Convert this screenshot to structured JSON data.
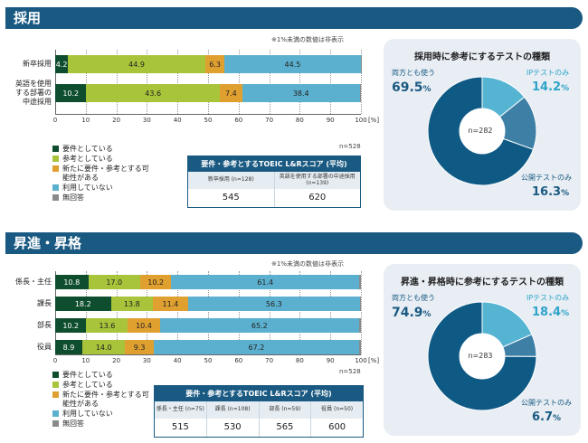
{
  "colors": {
    "required": "#0e4e2e",
    "reference": "#a8c43a",
    "considering": "#e0a030",
    "notused": "#5cb0cf",
    "noanswer": "#8a8a8a",
    "header": "#1a5a82",
    "donut_both": "#0e5a85",
    "donut_ip": "#56b4d3",
    "donut_public": "#3e7fa6"
  },
  "hiring": {
    "section_title": "採用",
    "note": "※1%未満の数値は非表示",
    "n_label": "n=528",
    "axis_unit": "[%]",
    "legend": [
      "要件としている",
      "参考としている",
      "新たに要件・参考とする可能性がある",
      "利用していない",
      "無回答"
    ],
    "score_table": {
      "title": "要件・参考とするTOEIC L&Rスコア (平均)",
      "headers": [
        "新卒採用 (n=128)",
        "英語を使用する部署の中途採用 (n=139)"
      ],
      "values": [
        "545",
        "620"
      ]
    },
    "donut": {
      "title": "採用時に参考にするテストの種類",
      "n_label": "n=282",
      "labels": [
        "両方とも使う",
        "IPテストのみ",
        "公開テストのみ"
      ],
      "pct_text": [
        "69.5",
        "14.2",
        "16.3"
      ]
    }
  },
  "promotion": {
    "section_title": "昇進・昇格",
    "note": "※1%未満の数値は非表示",
    "n_label": "n=528",
    "axis_unit": "[%]",
    "legend": [
      "要件としている",
      "参考としている",
      "新たに要件・参考とする可能性がある",
      "利用していない",
      "無回答"
    ],
    "score_table": {
      "title": "要件・参考とするTOEIC L&Rスコア (平均)",
      "headers": [
        "係長・主任 (n=75)",
        "課長 (n=108)",
        "部長 (n=59)",
        "役員 (n=50)"
      ],
      "values": [
        "515",
        "530",
        "565",
        "600"
      ]
    },
    "donut": {
      "title": "昇進・昇格時に参考にするテストの種類",
      "n_label": "n=283",
      "labels": [
        "両方とも使う",
        "IPテストのみ",
        "公開テストのみ"
      ],
      "pct_text": [
        "74.9",
        "18.4",
        "6.7"
      ]
    }
  },
  "chart_data": [
    {
      "type": "bar",
      "orientation": "horizontal-stacked",
      "categories": [
        "新卒採用",
        "英語を使用する部署の中途採用"
      ],
      "series": [
        {
          "name": "要件としている",
          "values": [
            4.2,
            10.2
          ]
        },
        {
          "name": "参考としている",
          "values": [
            44.9,
            43.6
          ]
        },
        {
          "name": "新たに要件・参考とする可能性がある",
          "values": [
            6.3,
            7.4
          ]
        },
        {
          "name": "利用していない",
          "values": [
            44.5,
            38.4
          ]
        },
        {
          "name": "無回答",
          "values": [
            0.1,
            0.4
          ]
        }
      ],
      "xlim": [
        0,
        100
      ],
      "xticks": [
        "0",
        "10",
        "20",
        "30",
        "40",
        "50",
        "60",
        "70",
        "80",
        "90",
        "100"
      ]
    },
    {
      "type": "bar",
      "orientation": "horizontal-stacked",
      "categories": [
        "係長・主任",
        "課長",
        "部長",
        "役員"
      ],
      "series": [
        {
          "name": "要件としている",
          "values": [
            10.8,
            18.2,
            10.2,
            8.9
          ]
        },
        {
          "name": "参考としている",
          "values": [
            17.0,
            13.8,
            13.6,
            14.0
          ]
        },
        {
          "name": "新たに要件・参考とする可能性がある",
          "values": [
            10.2,
            11.4,
            10.4,
            9.3
          ]
        },
        {
          "name": "利用していない",
          "values": [
            61.4,
            56.3,
            65.2,
            67.2
          ]
        },
        {
          "name": "無回答",
          "values": [
            0.6,
            0.3,
            0.6,
            0.6
          ]
        }
      ],
      "xlim": [
        0,
        100
      ],
      "xticks": [
        "0",
        "10",
        "20",
        "30",
        "40",
        "50",
        "60",
        "70",
        "80",
        "90",
        "100"
      ]
    },
    {
      "type": "pie",
      "title": "採用時に参考にするテストの種類",
      "labels": [
        "両方とも使う",
        "IPテストのみ",
        "公開テストのみ"
      ],
      "values": [
        69.5,
        14.2,
        16.3
      ]
    },
    {
      "type": "pie",
      "title": "昇進・昇格時に参考にするテストの種類",
      "labels": [
        "両方とも使う",
        "IPテストのみ",
        "公開テストのみ"
      ],
      "values": [
        74.9,
        18.4,
        6.7
      ]
    }
  ]
}
